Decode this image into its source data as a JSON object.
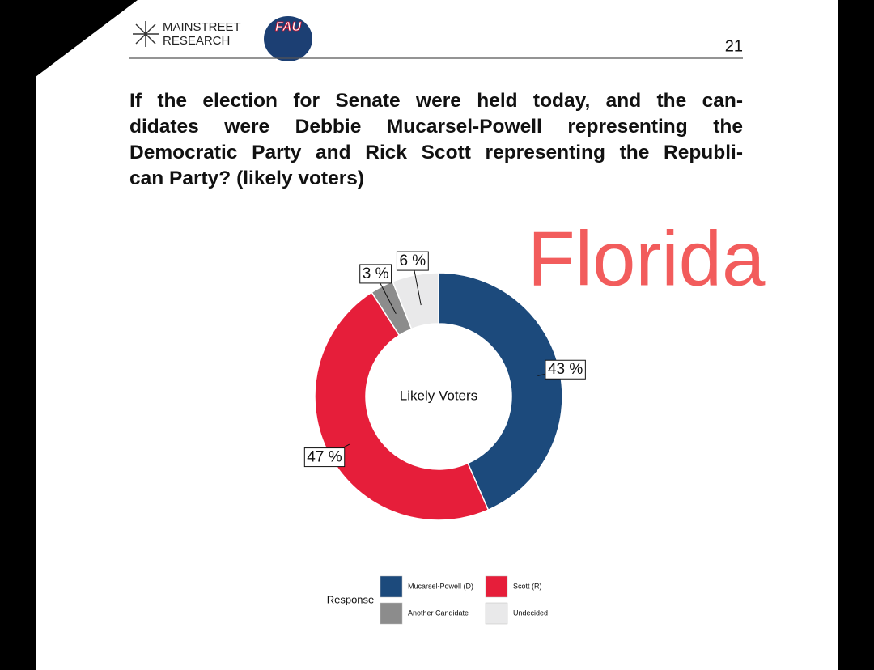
{
  "header": {
    "logo_lines": [
      "MAINSTREET",
      "RESEARCH"
    ],
    "badge": "FAU",
    "page_number": "21"
  },
  "question_lines": [
    "If the election for Senate were held today, and the can-",
    "didates were Debbie Mucarsel-Powell representing the",
    "Democratic Party and Rick Scott representing the Republi-",
    "can Party? (likely voters)"
  ],
  "overlay": "Florida",
  "chart_data": {
    "type": "donut",
    "center_label": "Likely Voters",
    "legend_title": "Response",
    "categories": [
      "Mucarsel-Powell (D)",
      "Scott (R)",
      "Another Candidate",
      "Undecided"
    ],
    "values": [
      43,
      47,
      3,
      6
    ],
    "value_labels": [
      "43 %",
      "47 %",
      "3 %",
      "6 %"
    ],
    "colors": [
      "#1c4a7c",
      "#e61e3a",
      "#8c8c8c",
      "#e9e9ea"
    ]
  }
}
